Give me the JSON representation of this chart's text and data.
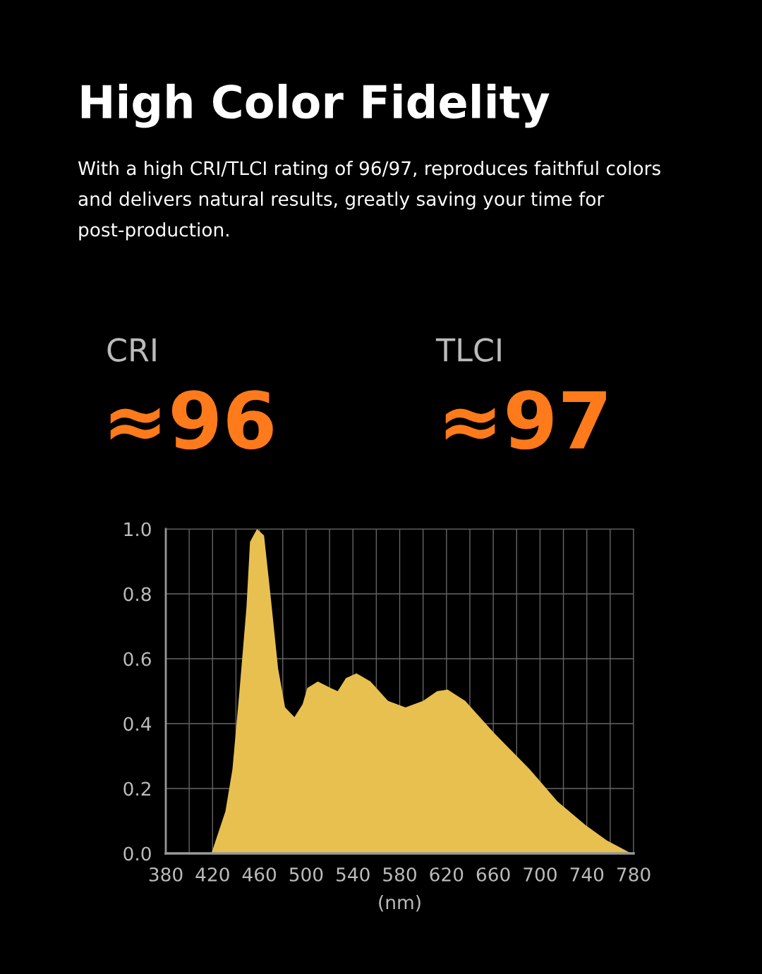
{
  "chart_data": {
    "type": "area",
    "title": "High Color Fidelity",
    "subtitle": "With a high CRI/TLCI rating of 96/97, reproduces faithful colors and delivers natural results, greatly saving your time for post-production.",
    "annotations": [
      "CRI",
      "≈96",
      "TLCI",
      "≈97"
    ],
    "xlabel": "(nm)",
    "series": [
      {
        "color": "#e8c050",
        "x": [
          419,
          431,
          437,
          443,
          449,
          452,
          458,
          464,
          470,
          476,
          482,
          490,
          497,
          501,
          510,
          521,
          527,
          534,
          543,
          555,
          570,
          585,
          600,
          612,
          621,
          636,
          661,
          691,
          715,
          739,
          757,
          778
        ],
        "values": [
          0.0,
          0.13,
          0.26,
          0.5,
          0.76,
          0.96,
          1.0,
          0.98,
          0.78,
          0.57,
          0.45,
          0.42,
          0.46,
          0.51,
          0.53,
          0.51,
          0.5,
          0.54,
          0.555,
          0.53,
          0.47,
          0.45,
          0.47,
          0.5,
          0.505,
          0.47,
          0.37,
          0.26,
          0.16,
          0.087,
          0.04,
          0.0
        ]
      }
    ],
    "xlim": [
      380,
      780
    ],
    "xticks": [
      380,
      {
        "value": 400,
        "label": null
      },
      420,
      {
        "value": 440,
        "label": null
      },
      460,
      {
        "value": 480,
        "label": null
      },
      500,
      {
        "value": 520,
        "label": null
      },
      540,
      {
        "value": 560,
        "label": null
      },
      580,
      {
        "value": 600,
        "label": null
      },
      620,
      {
        "value": 640,
        "label": null
      },
      660,
      {
        "value": 680,
        "label": null
      },
      700,
      {
        "value": 720,
        "label": null
      },
      740,
      {
        "value": 760,
        "label": null
      },
      780
    ],
    "ylim": [
      0,
      1.0
    ],
    "yticks": [
      {
        "value": 0,
        "label": "0.0"
      },
      0.2,
      0.4,
      0.6,
      0.8,
      {
        "value": 1.0,
        "label": "1.0"
      }
    ],
    "grid": true
  }
}
